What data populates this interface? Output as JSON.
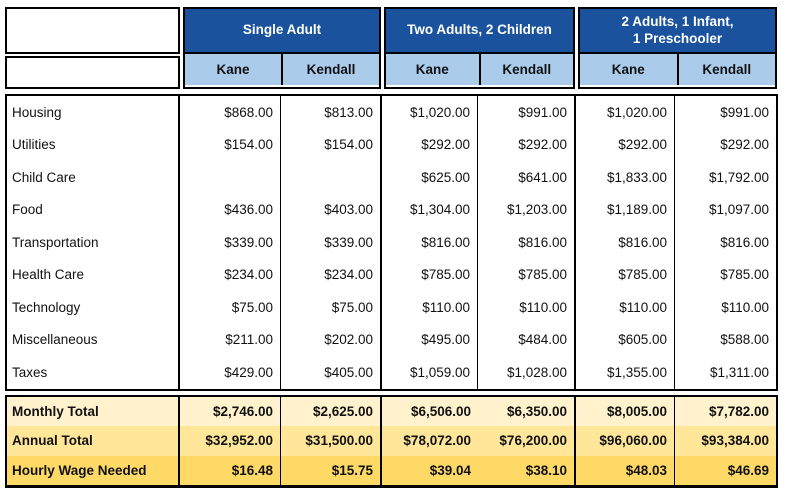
{
  "table": {
    "corner_top": "",
    "corner_bottom": "",
    "sections": [
      {
        "label": "Single Adult",
        "columns": [
          "Kane",
          "Kendall"
        ]
      },
      {
        "label": "Two Adults, 2 Children",
        "columns": [
          "Kane",
          "Kendall"
        ]
      },
      {
        "label": "2 Adults, 1 Infant,\n1 Preschooler",
        "columns": [
          "Kane",
          "Kendall"
        ]
      }
    ],
    "rows": [
      {
        "label": "Housing",
        "values": [
          "$868.00",
          "$813.00",
          "$1,020.00",
          "$991.00",
          "$1,020.00",
          "$991.00"
        ]
      },
      {
        "label": "Utilities",
        "values": [
          "$154.00",
          "$154.00",
          "$292.00",
          "$292.00",
          "$292.00",
          "$292.00"
        ]
      },
      {
        "label": "Child Care",
        "values": [
          "",
          "",
          "$625.00",
          "$641.00",
          "$1,833.00",
          "$1,792.00"
        ]
      },
      {
        "label": "Food",
        "values": [
          "$436.00",
          "$403.00",
          "$1,304.00",
          "$1,203.00",
          "$1,189.00",
          "$1,097.00"
        ]
      },
      {
        "label": "Transportation",
        "values": [
          "$339.00",
          "$339.00",
          "$816.00",
          "$816.00",
          "$816.00",
          "$816.00"
        ]
      },
      {
        "label": "Health Care",
        "values": [
          "$234.00",
          "$234.00",
          "$785.00",
          "$785.00",
          "$785.00",
          "$785.00"
        ]
      },
      {
        "label": "Technology",
        "values": [
          "$75.00",
          "$75.00",
          "$110.00",
          "$110.00",
          "$110.00",
          "$110.00"
        ]
      },
      {
        "label": "Miscellaneous",
        "values": [
          "$211.00",
          "$202.00",
          "$495.00",
          "$484.00",
          "$605.00",
          "$588.00"
        ]
      },
      {
        "label": "Taxes",
        "values": [
          "$429.00",
          "$405.00",
          "$1,059.00",
          "$1,028.00",
          "$1,355.00",
          "$1,311.00"
        ]
      }
    ],
    "totals": [
      {
        "label": "Monthly Total",
        "bg": "#FFF2CC",
        "values": [
          "$2,746.00",
          "$2,625.00",
          "$6,506.00",
          "$6,350.00",
          "$8,005.00",
          "$7,782.00"
        ]
      },
      {
        "label": "Annual Total",
        "bg": "#FFE699",
        "values": [
          "$32,952.00",
          "$31,500.00",
          "$78,072.00",
          "$76,200.00",
          "$96,060.00",
          "$93,384.00"
        ]
      },
      {
        "label": "Hourly Wage Needed",
        "bg": "#FFD966",
        "values": [
          "$16.48",
          "$15.75",
          "$39.04",
          "$38.10",
          "$48.03",
          "$46.69"
        ]
      }
    ],
    "colors": {
      "section_header_bg": "#1A529E",
      "section_header_text": "#FFFFFF",
      "subheader_bg": "#AACBEA",
      "border": "#000000",
      "monthly_total_bg": "#FFF2CC",
      "annual_total_bg": "#FFE699",
      "hourly_wage_bg": "#FFD966"
    }
  },
  "chart_data": {
    "type": "table",
    "title": "Cost of living comparison, Kane vs Kendall counties",
    "column_groups": [
      "Single Adult",
      "Two Adults, 2 Children",
      "2 Adults, 1 Infant, 1 Preschooler"
    ],
    "columns": [
      "Single Adult - Kane",
      "Single Adult - Kendall",
      "Two Adults, 2 Children - Kane",
      "Two Adults, 2 Children - Kendall",
      "2 Adults, 1 Infant, 1 Preschooler - Kane",
      "2 Adults, 1 Infant, 1 Preschooler - Kendall"
    ],
    "categories": [
      "Housing",
      "Utilities",
      "Child Care",
      "Food",
      "Transportation",
      "Health Care",
      "Technology",
      "Miscellaneous",
      "Taxes",
      "Monthly Total",
      "Annual Total",
      "Hourly Wage Needed"
    ],
    "values": [
      [
        868,
        813,
        1020,
        991,
        1020,
        991
      ],
      [
        154,
        154,
        292,
        292,
        292,
        292
      ],
      [
        null,
        null,
        625,
        641,
        1833,
        1792
      ],
      [
        436,
        403,
        1304,
        1203,
        1189,
        1097
      ],
      [
        339,
        339,
        816,
        816,
        816,
        816
      ],
      [
        234,
        234,
        785,
        785,
        785,
        785
      ],
      [
        75,
        75,
        110,
        110,
        110,
        110
      ],
      [
        211,
        202,
        495,
        484,
        605,
        588
      ],
      [
        429,
        405,
        1059,
        1028,
        1355,
        1311
      ],
      [
        2746,
        2625,
        6506,
        6350,
        8005,
        7782
      ],
      [
        32952,
        31500,
        78072,
        76200,
        96060,
        93384
      ],
      [
        16.48,
        15.75,
        39.04,
        38.1,
        48.03,
        46.69
      ]
    ]
  }
}
